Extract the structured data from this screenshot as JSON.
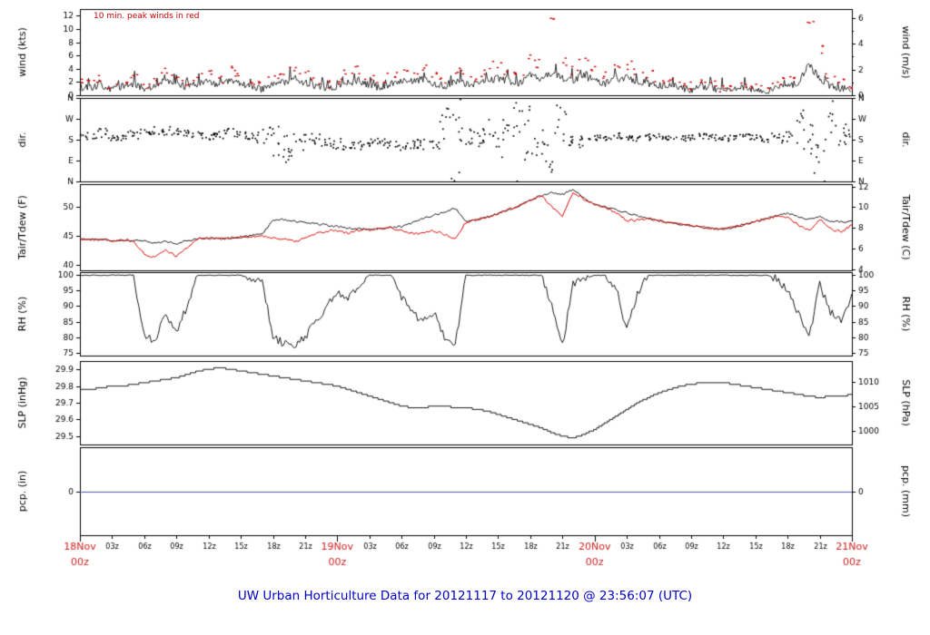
{
  "title": "UW Urban Horticulture Data for 20121117  to  20121120 @ 23:56:07  (UTC)",
  "annotation": "10 min. peak winds in red",
  "colors": {
    "trace": "#000000",
    "peak_red": "#cc0000",
    "dew_red": "#dd0000",
    "pcp_blue": "#5555bb",
    "day_label_red": "#cc2020",
    "title_blue": "#0000cc",
    "axis_black": "#000000"
  },
  "x_axis": {
    "x_start_hour": 0,
    "x_step_hours": 1,
    "hours_total": 72,
    "day_labels": [
      {
        "line1": "18Nov",
        "line2": "00z",
        "hour": 0
      },
      {
        "line1": "19Nov",
        "line2": "00z",
        "hour": 24
      },
      {
        "line1": "20Nov",
        "line2": "00z",
        "hour": 48
      },
      {
        "line1": "21Nov",
        "line2": "00z",
        "hour": 72
      }
    ],
    "hour_tick_labels": [
      "03z",
      "06z",
      "09z",
      "12z",
      "15z",
      "18z",
      "21z"
    ]
  },
  "panels": [
    {
      "id": "wind",
      "left_title": "wind (kts)",
      "right_title": "wind (m/s)",
      "left_ticks": [
        0,
        2,
        4,
        6,
        8,
        10,
        12
      ],
      "right_ticks_ms": [
        0,
        2,
        4,
        6
      ],
      "right_minor_ms": [
        1,
        3,
        5
      ],
      "range": [
        0,
        13
      ]
    },
    {
      "id": "dir",
      "left_title": "dir.",
      "right_title": "dir.",
      "dir_ticks": [
        {
          "v": 0,
          "l": "N"
        },
        {
          "v": 90,
          "l": "E"
        },
        {
          "v": 180,
          "l": "S"
        },
        {
          "v": 270,
          "l": "W"
        },
        {
          "v": 360,
          "l": "N"
        }
      ],
      "range": [
        0,
        360
      ]
    },
    {
      "id": "tair",
      "left_title": "Tair/Tdew (F)",
      "right_title": "Tair/Tdew (C)",
      "left_ticks": [
        40,
        45,
        50
      ],
      "right_ticks_c": [
        4,
        6,
        8,
        10,
        12
      ],
      "range": [
        39,
        54
      ]
    },
    {
      "id": "rh",
      "left_title": "RH (%)",
      "right_title": "RH (%)",
      "left_ticks": [
        75,
        80,
        85,
        90,
        95,
        100
      ],
      "range": [
        74,
        101
      ]
    },
    {
      "id": "slp",
      "left_title": "SLP (inHg)",
      "right_title": "SLP (hPa)",
      "left_ticks": [
        29.5,
        29.6,
        29.7,
        29.8,
        29.9
      ],
      "right_ticks_hpa": [
        1000,
        1005,
        1010
      ],
      "range": [
        29.45,
        29.95
      ]
    },
    {
      "id": "pcp",
      "left_title": "pcp. (in)",
      "right_title": "pcp. (mm)",
      "left_ticks": [
        0
      ],
      "range": [
        -1,
        1
      ]
    }
  ],
  "render_hints": {
    "noise": {
      "wind": 0.55,
      "tair": 0.18,
      "tdew": 0.22,
      "rh": 1.3,
      "dir_dots_per_hour": 8,
      "peak_dots_per_hour": 3
    },
    "seed": 1234
  },
  "chart_data": {
    "type": "line",
    "title": "UW Urban Horticulture meteogram 2012-11-18 00z to 2012-11-21 00z",
    "x_unit": "hours since 2012-11-18 00:00 UTC",
    "x_start": 0,
    "x_step": 1,
    "series": [
      {
        "name": "wind_avg_kts",
        "panel": "wind",
        "color": "#000000",
        "values": [
          1.2,
          1.0,
          1.5,
          0.8,
          1.3,
          1.8,
          1.0,
          1.4,
          2.2,
          1.8,
          1.3,
          1.6,
          2.0,
          1.4,
          2.5,
          1.8,
          1.2,
          0.9,
          1.6,
          2.0,
          2.3,
          1.8,
          1.4,
          1.1,
          1.4,
          1.8,
          2.2,
          1.6,
          1.1,
          1.8,
          2.3,
          2.0,
          2.5,
          1.8,
          1.4,
          2.2,
          1.8,
          1.6,
          2.2,
          2.6,
          2.2,
          1.8,
          3.0,
          2.6,
          3.4,
          2.6,
          2.2,
          3.0,
          2.2,
          1.8,
          2.5,
          2.6,
          2.2,
          1.8,
          1.4,
          1.6,
          1.1,
          0.8,
          1.4,
          1.0,
          0.6,
          0.9,
          1.2,
          0.8,
          0.6,
          1.0,
          1.4,
          1.8,
          4.5,
          2.6,
          1.4,
          1.0,
          0.9
        ]
      },
      {
        "name": "wind_peak_kts",
        "panel": "wind",
        "color": "#cc0000",
        "values": [
          2.8,
          2.4,
          3.2,
          2.2,
          2.8,
          3.8,
          2.4,
          3.0,
          4.2,
          3.8,
          2.8,
          3.4,
          4.0,
          3.0,
          4.8,
          3.8,
          2.8,
          2.2,
          3.4,
          4.0,
          4.4,
          3.8,
          3.0,
          2.4,
          3.0,
          3.8,
          4.4,
          3.4,
          2.4,
          3.8,
          4.4,
          4.0,
          4.8,
          3.8,
          3.0,
          4.4,
          3.8,
          3.4,
          4.4,
          5.2,
          4.4,
          3.8,
          6.2,
          5.4,
          12.4,
          5.8,
          4.4,
          5.8,
          4.4,
          3.8,
          4.8,
          5.2,
          4.4,
          3.8,
          3.0,
          3.4,
          2.4,
          2.0,
          2.8,
          2.4,
          1.6,
          2.0,
          2.4,
          2.0,
          1.6,
          2.2,
          3.0,
          3.8,
          11.8,
          7.5,
          3.8,
          2.6,
          2.2
        ]
      },
      {
        "name": "wind_dir_deg",
        "panel": "dir",
        "color": "#000000",
        "values": [
          200,
          195,
          210,
          190,
          185,
          200,
          210,
          215,
          220,
          210,
          205,
          200,
          195,
          205,
          210,
          200,
          195,
          185,
          170,
          160,
          150,
          170,
          180,
          170,
          160,
          150,
          155,
          165,
          170,
          160,
          150,
          155,
          160,
          150,
          255,
          310,
          200,
          180,
          220,
          160,
          240,
          280,
          200,
          150,
          120,
          250,
          190,
          170,
          185,
          190,
          195,
          190,
          185,
          190,
          195,
          190,
          185,
          190,
          195,
          190,
          185,
          190,
          195,
          190,
          185,
          190,
          200,
          230,
          150,
          110,
          270,
          200,
          195
        ]
      },
      {
        "name": "wind_dir_spread_deg",
        "panel": "dir",
        "color": "#000000",
        "values": [
          18,
          15,
          20,
          15,
          15,
          18,
          20,
          22,
          20,
          18,
          15,
          15,
          18,
          20,
          18,
          15,
          15,
          40,
          70,
          90,
          60,
          40,
          30,
          25,
          25,
          20,
          18,
          20,
          18,
          15,
          18,
          20,
          25,
          30,
          80,
          100,
          50,
          40,
          60,
          70,
          90,
          110,
          130,
          120,
          100,
          80,
          40,
          30,
          15,
          12,
          15,
          12,
          12,
          15,
          12,
          12,
          15,
          12,
          12,
          15,
          12,
          12,
          15,
          12,
          15,
          18,
          40,
          80,
          110,
          120,
          90,
          50,
          30
        ]
      },
      {
        "name": "tair_f",
        "panel": "tair",
        "color": "#000000",
        "values": [
          44.5,
          44.3,
          44.4,
          44.2,
          44.3,
          44.1,
          44.2,
          43.8,
          44.0,
          43.6,
          44.2,
          44.5,
          44.6,
          44.5,
          44.6,
          44.8,
          45.0,
          45.3,
          47.6,
          47.9,
          47.6,
          47.3,
          47.1,
          46.9,
          46.6,
          46.4,
          46.3,
          46.1,
          46.2,
          46.4,
          46.6,
          47.2,
          48.1,
          48.6,
          49.2,
          49.8,
          47.4,
          47.8,
          48.3,
          48.9,
          49.6,
          50.3,
          51.2,
          52.0,
          52.6,
          52.2,
          53.0,
          51.6,
          50.4,
          50.0,
          49.5,
          49.0,
          48.5,
          48.0,
          47.6,
          47.3,
          47.0,
          46.8,
          46.5,
          46.3,
          46.2,
          46.5,
          47.0,
          47.5,
          48.0,
          48.5,
          49.0,
          48.4,
          47.9,
          48.3,
          47.6,
          47.4,
          47.6
        ]
      },
      {
        "name": "tdew_f",
        "panel": "tair",
        "color": "#dd0000",
        "values": [
          44.5,
          44.3,
          44.4,
          44.2,
          44.3,
          44.1,
          41.8,
          41.2,
          42.5,
          41.5,
          43.0,
          44.4,
          44.6,
          44.5,
          44.6,
          44.8,
          44.9,
          45.0,
          44.6,
          44.4,
          44.0,
          44.6,
          45.4,
          45.8,
          45.9,
          45.5,
          46.0,
          46.1,
          46.2,
          46.4,
          45.8,
          45.4,
          45.6,
          45.9,
          45.2,
          44.6,
          47.4,
          47.8,
          48.3,
          48.9,
          49.6,
          50.3,
          51.2,
          52.0,
          50.2,
          48.4,
          52.6,
          51.4,
          50.4,
          50.0,
          49.0,
          47.6,
          47.8,
          48.0,
          47.6,
          47.3,
          47.0,
          46.8,
          46.5,
          46.3,
          46.2,
          46.5,
          47.0,
          47.5,
          48.0,
          48.3,
          48.2,
          46.9,
          45.9,
          47.9,
          46.2,
          45.7,
          46.9
        ]
      },
      {
        "name": "rh_pct",
        "panel": "rh",
        "color": "#000000",
        "values": [
          100,
          100,
          100,
          100,
          100,
          100,
          80,
          79,
          87,
          82,
          90,
          100,
          100,
          100,
          100,
          100,
          99,
          98,
          80,
          78,
          77,
          80,
          85,
          90,
          94,
          92,
          97,
          100,
          100,
          100,
          93,
          88,
          85,
          88,
          80,
          77,
          100,
          100,
          100,
          100,
          100,
          100,
          100,
          100,
          90,
          77,
          97,
          99,
          100,
          100,
          96,
          82,
          94,
          100,
          100,
          100,
          100,
          100,
          100,
          100,
          100,
          100,
          100,
          100,
          100,
          99,
          95,
          88,
          80,
          97,
          88,
          85,
          94
        ]
      },
      {
        "name": "slp_inhg",
        "panel": "slp",
        "color": "#000000",
        "values": [
          29.78,
          29.78,
          29.79,
          29.8,
          29.8,
          29.81,
          29.82,
          29.83,
          29.84,
          29.85,
          29.87,
          29.89,
          29.9,
          29.91,
          29.9,
          29.89,
          29.88,
          29.87,
          29.86,
          29.85,
          29.84,
          29.83,
          29.82,
          29.81,
          29.8,
          29.78,
          29.76,
          29.74,
          29.72,
          29.7,
          29.68,
          29.67,
          29.67,
          29.68,
          29.68,
          29.67,
          29.67,
          29.66,
          29.65,
          29.63,
          29.61,
          29.59,
          29.57,
          29.55,
          29.52,
          29.5,
          29.49,
          29.51,
          29.54,
          29.58,
          29.62,
          29.66,
          29.7,
          29.73,
          29.76,
          29.78,
          29.8,
          29.81,
          29.82,
          29.82,
          29.82,
          29.81,
          29.8,
          29.79,
          29.78,
          29.77,
          29.76,
          29.75,
          29.74,
          29.73,
          29.74,
          29.74,
          29.75
        ]
      },
      {
        "name": "pcp_in",
        "panel": "pcp",
        "color": "#5555bb",
        "values": [
          0,
          0,
          0,
          0,
          0,
          0,
          0,
          0,
          0,
          0,
          0,
          0,
          0,
          0,
          0,
          0,
          0,
          0,
          0,
          0,
          0,
          0,
          0,
          0,
          0,
          0,
          0,
          0,
          0,
          0,
          0,
          0,
          0,
          0,
          0,
          0,
          0,
          0,
          0,
          0,
          0,
          0,
          0,
          0,
          0,
          0,
          0,
          0,
          0,
          0,
          0,
          0,
          0,
          0,
          0,
          0,
          0,
          0,
          0,
          0,
          0,
          0,
          0,
          0,
          0,
          0,
          0,
          0,
          0,
          0,
          0,
          0,
          0
        ]
      }
    ]
  }
}
